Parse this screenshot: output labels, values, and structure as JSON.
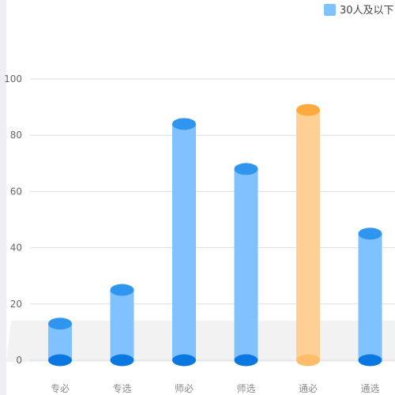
{
  "chart_data": {
    "type": "bar",
    "categories": [
      "专必",
      "专选",
      "师必",
      "师选",
      "通必",
      "通选"
    ],
    "series": [
      {
        "name": "30人及以下",
        "values": [
          13,
          25,
          84,
          68,
          89,
          45
        ]
      }
    ],
    "highlight_index": 4,
    "ylim": [
      0,
      100
    ],
    "yticks": [
      0,
      20,
      40,
      60,
      80,
      100
    ],
    "grid": true,
    "legend_position": "top-right",
    "colors": {
      "bar_body": "#80c1ff",
      "bar_top": "#2f95ee",
      "bar_bottom": "#0a78e0",
      "highlight_body": "#ffcf93",
      "highlight_top": "#ffa93e",
      "highlight_bottom": "#ffbc6a",
      "grid": "#dddddd",
      "floor": "#f2f2f2",
      "legend_swatch": "#80c1ff"
    }
  }
}
